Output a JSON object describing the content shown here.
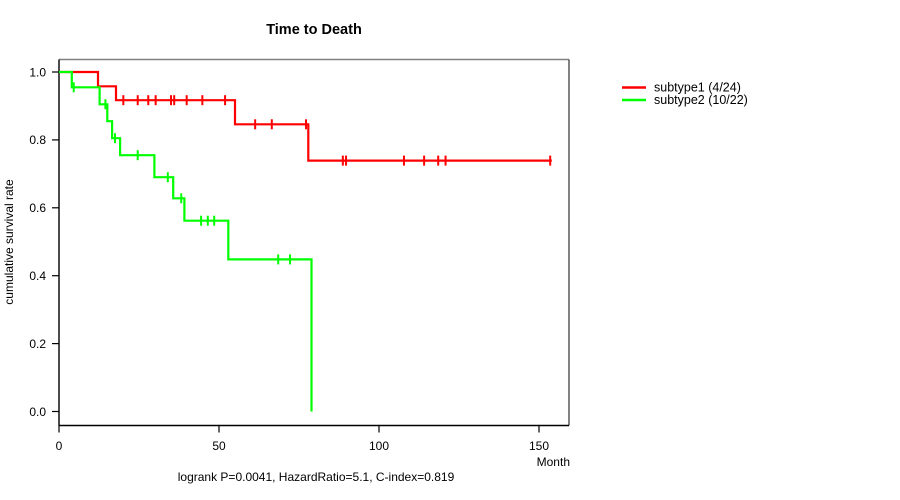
{
  "chart": {
    "title": "Time to Death",
    "xlabel": "Month",
    "ylabel": "cumulative survival rate",
    "footer": "logrank P=0.0041, HazardRatio=5.1, C-index=0.819",
    "chart_data": {
      "type": "line",
      "subtype": "kaplan-meier-step-survival",
      "title": "Time to Death",
      "xlabel": "Month",
      "ylabel": "cumulative survival rate",
      "xlim": [
        0,
        160
      ],
      "ylim": [
        0.0,
        1.0
      ],
      "x_ticks": [
        0,
        50,
        100,
        150
      ],
      "y_ticks": [
        0.0,
        0.2,
        0.4,
        0.6,
        0.8,
        1.0
      ],
      "grid": false,
      "legend_position": "right-outside",
      "annotations": [
        "logrank P=0.0041, HazardRatio=5.1, C-index=0.819"
      ],
      "series": [
        {
          "name": "subtype1 (4/24)",
          "color": "#ff0000",
          "steps": [
            [
              0,
              1.0
            ],
            [
              12.2,
              1.0
            ],
            [
              12.2,
              0.958
            ],
            [
              17.8,
              0.958
            ],
            [
              17.8,
              0.917
            ],
            [
              55,
              0.917
            ],
            [
              55,
              0.846
            ],
            [
              77.9,
              0.846
            ],
            [
              77.9,
              0.739
            ],
            [
              154,
              0.739
            ]
          ],
          "censor_marks": [
            [
              20.1,
              0.917
            ],
            [
              24.6,
              0.917
            ],
            [
              27.9,
              0.917
            ],
            [
              30.2,
              0.917
            ],
            [
              35,
              0.917
            ],
            [
              36,
              0.917
            ],
            [
              39.9,
              0.917
            ],
            [
              44.8,
              0.917
            ],
            [
              51.9,
              0.917
            ],
            [
              61.3,
              0.846
            ],
            [
              66.5,
              0.846
            ],
            [
              77.2,
              0.846
            ],
            [
              88.7,
              0.739
            ],
            [
              89.7,
              0.739
            ],
            [
              107.8,
              0.739
            ],
            [
              114.1,
              0.739
            ],
            [
              118.5,
              0.739
            ],
            [
              120.8,
              0.739
            ],
            [
              153.5,
              0.739
            ]
          ]
        },
        {
          "name": "subtype2 (10/22)",
          "color": "#00ff00",
          "steps": [
            [
              0,
              1.0
            ],
            [
              4,
              1.0
            ],
            [
              4,
              0.955
            ],
            [
              12.7,
              0.955
            ],
            [
              12.7,
              0.905
            ],
            [
              15.1,
              0.905
            ],
            [
              15.1,
              0.855
            ],
            [
              16.6,
              0.855
            ],
            [
              16.6,
              0.805
            ],
            [
              19.1,
              0.805
            ],
            [
              19.1,
              0.755
            ],
            [
              29.8,
              0.755
            ],
            [
              29.8,
              0.69
            ],
            [
              35.7,
              0.69
            ],
            [
              35.7,
              0.628
            ],
            [
              39.2,
              0.628
            ],
            [
              39.2,
              0.562
            ],
            [
              52.9,
              0.562
            ],
            [
              52.9,
              0.448
            ],
            [
              78.9,
              0.448
            ],
            [
              78.9,
              0.0
            ]
          ],
          "censor_marks": [
            [
              4.6,
              0.955
            ],
            [
              14.5,
              0.905
            ],
            [
              17.5,
              0.805
            ],
            [
              24.6,
              0.755
            ],
            [
              34,
              0.69
            ],
            [
              38.2,
              0.628
            ],
            [
              44.4,
              0.562
            ],
            [
              46.5,
              0.562
            ],
            [
              48.5,
              0.562
            ],
            [
              68.5,
              0.448
            ],
            [
              72.2,
              0.448
            ]
          ]
        }
      ]
    },
    "colors": {
      "series1": "#ff0000",
      "series2": "#00ff00",
      "axis": "#000000",
      "box_top": "#808080",
      "box_right": "#4d4d4d",
      "background": "#ffffff"
    }
  }
}
